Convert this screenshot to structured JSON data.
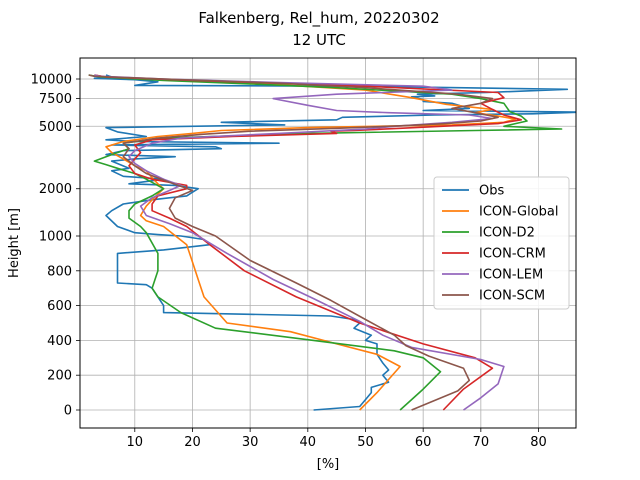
{
  "chart_data": {
    "type": "line",
    "title": "Falkenberg, Rel_hum, 20220302",
    "subtitle": "12 UTC",
    "xlabel": "[%]",
    "ylabel": "Height [m]",
    "xlim": [
      0.5,
      86.5
    ],
    "x_ticks": [
      10,
      20,
      30,
      40,
      50,
      60,
      70,
      80
    ],
    "y_ticks": [
      {
        "value": 0,
        "label": "0"
      },
      {
        "value": 200,
        "label": "200"
      },
      {
        "value": 400,
        "label": "400"
      },
      {
        "value": 600,
        "label": "600"
      },
      {
        "value": 800,
        "label": "800"
      },
      {
        "value": 1000,
        "label": "1000"
      },
      {
        "value": 2000,
        "label": "2000"
      },
      {
        "value": 5000,
        "label": "5000"
      },
      {
        "value": 7500,
        "label": "7500"
      },
      {
        "value": 10000,
        "label": "10000"
      }
    ],
    "y_scale": "piecewise: linear 0–1000 m, logarithmic above 1000 m",
    "grid": true,
    "legend_position": "center-right",
    "series": [
      {
        "name": "Obs",
        "color": "#1f77b4",
        "points": [
          [
            41,
            0
          ],
          [
            49,
            20
          ],
          [
            50,
            60
          ],
          [
            51,
            100
          ],
          [
            51,
            130
          ],
          [
            54,
            160
          ],
          [
            53,
            200
          ],
          [
            54,
            230
          ],
          [
            53,
            270
          ],
          [
            52,
            320
          ],
          [
            52,
            380
          ],
          [
            50,
            400
          ],
          [
            51,
            430
          ],
          [
            48,
            470
          ],
          [
            49,
            500
          ],
          [
            48,
            520
          ],
          [
            44,
            540
          ],
          [
            30,
            550
          ],
          [
            15,
            560
          ],
          [
            15,
            600
          ],
          [
            14,
            650
          ],
          [
            13,
            700
          ],
          [
            12,
            720
          ],
          [
            7,
            730
          ],
          [
            7,
            760
          ],
          [
            7,
            800
          ],
          [
            7,
            850
          ],
          [
            7,
            900
          ],
          [
            15,
            920
          ],
          [
            23,
            950
          ],
          [
            22,
            980
          ],
          [
            18,
            1000
          ],
          [
            14,
            1020
          ],
          [
            10,
            1050
          ],
          [
            7,
            1150
          ],
          [
            5,
            1350
          ],
          [
            6,
            1450
          ],
          [
            8,
            1600
          ],
          [
            13,
            1700
          ],
          [
            16,
            1750
          ],
          [
            19,
            1800
          ],
          [
            20,
            1900
          ],
          [
            21,
            2000
          ],
          [
            17,
            2100
          ],
          [
            9,
            2150
          ],
          [
            15,
            2300
          ],
          [
            8,
            2400
          ],
          [
            6,
            2600
          ],
          [
            9,
            2700
          ],
          [
            6,
            3000
          ],
          [
            10,
            3100
          ],
          [
            17,
            3200
          ],
          [
            5,
            3300
          ],
          [
            8,
            3500
          ],
          [
            25,
            3600
          ],
          [
            24,
            3700
          ],
          [
            6,
            3800
          ],
          [
            35,
            3900
          ],
          [
            10,
            4000
          ],
          [
            5,
            4100
          ],
          [
            12,
            4300
          ],
          [
            7,
            4600
          ],
          [
            5,
            4900
          ],
          [
            36,
            5100
          ],
          [
            25,
            5300
          ],
          [
            45,
            5500
          ],
          [
            46,
            5700
          ],
          [
            62,
            5900
          ],
          [
            79,
            6000
          ],
          [
            88,
            6150
          ],
          [
            60,
            6300
          ],
          [
            68,
            6500
          ],
          [
            65,
            7000
          ],
          [
            60,
            7200
          ],
          [
            60,
            7400
          ],
          [
            58,
            7700
          ],
          [
            62,
            7800
          ],
          [
            59,
            8000
          ],
          [
            71,
            8200
          ],
          [
            85,
            8600
          ],
          [
            48,
            9000
          ],
          [
            10,
            9100
          ],
          [
            14,
            9600
          ],
          [
            10,
            9900
          ],
          [
            3,
            10100
          ],
          [
            6,
            10300
          ],
          [
            5,
            10600
          ]
        ]
      },
      {
        "name": "ICON-Global",
        "color": "#ff7f0e",
        "points": [
          [
            49,
            0
          ],
          [
            52,
            100
          ],
          [
            56,
            250
          ],
          [
            52,
            320
          ],
          [
            45,
            380
          ],
          [
            37,
            450
          ],
          [
            26,
            500
          ],
          [
            22,
            650
          ],
          [
            21,
            750
          ],
          [
            20,
            850
          ],
          [
            19,
            950
          ],
          [
            15,
            1150
          ],
          [
            12,
            1250
          ],
          [
            11,
            1350
          ],
          [
            12,
            1550
          ],
          [
            13,
            1700
          ],
          [
            14,
            1850
          ],
          [
            15,
            2000
          ],
          [
            14,
            2150
          ],
          [
            13,
            2350
          ],
          [
            12,
            2600
          ],
          [
            10,
            2800
          ],
          [
            8,
            3100
          ],
          [
            6,
            3400
          ],
          [
            5,
            3700
          ],
          [
            8,
            4000
          ],
          [
            14,
            4300
          ],
          [
            20,
            4500
          ],
          [
            25,
            4700
          ],
          [
            40,
            4900
          ],
          [
            65,
            5100
          ],
          [
            74,
            5300
          ],
          [
            76,
            5550
          ],
          [
            73,
            5800
          ],
          [
            69,
            6100
          ],
          [
            72,
            6400
          ],
          [
            64,
            6900
          ],
          [
            58,
            7600
          ],
          [
            50,
            8500
          ],
          [
            35,
            9200
          ],
          [
            20,
            9700
          ],
          [
            5,
            10300
          ],
          [
            3,
            10600
          ]
        ]
      },
      {
        "name": "ICON-D2",
        "color": "#2ca02c",
        "points": [
          [
            56,
            0
          ],
          [
            58,
            60
          ],
          [
            60,
            120
          ],
          [
            63,
            220
          ],
          [
            60,
            300
          ],
          [
            55,
            340
          ],
          [
            41,
            400
          ],
          [
            24,
            470
          ],
          [
            18,
            560
          ],
          [
            14,
            650
          ],
          [
            13,
            700
          ],
          [
            14,
            800
          ],
          [
            14,
            900
          ],
          [
            12,
            1050
          ],
          [
            11,
            1150
          ],
          [
            9,
            1300
          ],
          [
            9,
            1450
          ],
          [
            10,
            1600
          ],
          [
            13,
            1800
          ],
          [
            15,
            2000
          ],
          [
            12,
            2300
          ],
          [
            10,
            2500
          ],
          [
            7,
            2700
          ],
          [
            5,
            2850
          ],
          [
            3,
            3000
          ],
          [
            6,
            3300
          ],
          [
            9,
            3600
          ],
          [
            8,
            3900
          ],
          [
            15,
            4200
          ],
          [
            40,
            4500
          ],
          [
            69,
            4700
          ],
          [
            84,
            4800
          ],
          [
            74,
            5000
          ],
          [
            78,
            5400
          ],
          [
            77,
            5800
          ],
          [
            75,
            6200
          ],
          [
            74,
            7000
          ],
          [
            70,
            7500
          ],
          [
            65,
            8000
          ],
          [
            45,
            8800
          ],
          [
            30,
            9300
          ],
          [
            15,
            9800
          ],
          [
            4,
            10300
          ],
          [
            2,
            10600
          ]
        ]
      },
      {
        "name": "ICON-CRM",
        "color": "#d62728",
        "points": [
          [
            63.5,
            0
          ],
          [
            67,
            120
          ],
          [
            72,
            240
          ],
          [
            69,
            300
          ],
          [
            60,
            380
          ],
          [
            49,
            500
          ],
          [
            38,
            650
          ],
          [
            29,
            800
          ],
          [
            23,
            950
          ],
          [
            19,
            1150
          ],
          [
            16,
            1300
          ],
          [
            13,
            1450
          ],
          [
            13,
            1600
          ],
          [
            14,
            1800
          ],
          [
            19,
            2000
          ],
          [
            19,
            2100
          ],
          [
            13,
            2300
          ],
          [
            10,
            2500
          ],
          [
            9,
            2800
          ],
          [
            10,
            3100
          ],
          [
            11,
            3400
          ],
          [
            10,
            3800
          ],
          [
            13,
            4100
          ],
          [
            27,
            4300
          ],
          [
            45,
            4500
          ],
          [
            44,
            4650
          ],
          [
            48,
            4700
          ],
          [
            56,
            4850
          ],
          [
            73,
            5200
          ],
          [
            77,
            5500
          ],
          [
            74,
            5900
          ],
          [
            72,
            6400
          ],
          [
            70,
            7000
          ],
          [
            74,
            7600
          ],
          [
            73,
            8200
          ],
          [
            50,
            9000
          ],
          [
            20,
            9800
          ],
          [
            5,
            10300
          ],
          [
            3,
            10600
          ]
        ]
      },
      {
        "name": "ICON-LEM",
        "color": "#9467bd",
        "points": [
          [
            67,
            0
          ],
          [
            70,
            70
          ],
          [
            73,
            150
          ],
          [
            74,
            250
          ],
          [
            70,
            290
          ],
          [
            58,
            360
          ],
          [
            53,
            430
          ],
          [
            49,
            510
          ],
          [
            41,
            640
          ],
          [
            34,
            750
          ],
          [
            26,
            900
          ],
          [
            20,
            1050
          ],
          [
            16,
            1200
          ],
          [
            12,
            1350
          ],
          [
            11,
            1550
          ],
          [
            13,
            1750
          ],
          [
            16,
            1950
          ],
          [
            18,
            2100
          ],
          [
            15,
            2300
          ],
          [
            12,
            2600
          ],
          [
            10,
            2900
          ],
          [
            9,
            3200
          ],
          [
            10,
            3500
          ],
          [
            13,
            3900
          ],
          [
            18,
            4200
          ],
          [
            35,
            4500
          ],
          [
            50,
            4800
          ],
          [
            55,
            5000
          ],
          [
            65,
            5300
          ],
          [
            72,
            5600
          ],
          [
            68,
            5900
          ],
          [
            54,
            6100
          ],
          [
            45,
            6300
          ],
          [
            40,
            6800
          ],
          [
            34,
            7500
          ],
          [
            45,
            8000
          ],
          [
            65,
            8500
          ],
          [
            60,
            9000
          ],
          [
            35,
            9500
          ],
          [
            15,
            10000
          ],
          [
            4,
            10400
          ],
          [
            3,
            10600
          ]
        ]
      },
      {
        "name": "ICON-SCM",
        "color": "#8c564b",
        "points": [
          [
            58,
            0
          ],
          [
            66,
            110
          ],
          [
            68,
            170
          ],
          [
            67,
            240
          ],
          [
            61,
            310
          ],
          [
            57,
            370
          ],
          [
            55,
            430
          ],
          [
            50,
            520
          ],
          [
            44,
            630
          ],
          [
            38,
            730
          ],
          [
            30,
            860
          ],
          [
            24,
            1000
          ],
          [
            20,
            1150
          ],
          [
            17,
            1300
          ],
          [
            16,
            1500
          ],
          [
            17,
            1750
          ],
          [
            20,
            1950
          ],
          [
            16,
            2200
          ],
          [
            12,
            2500
          ],
          [
            10,
            2800
          ],
          [
            8,
            3200
          ],
          [
            9,
            3600
          ],
          [
            8,
            3900
          ],
          [
            14,
            4200
          ],
          [
            22,
            4450
          ],
          [
            30,
            4650
          ],
          [
            45,
            4850
          ],
          [
            57,
            5050
          ],
          [
            64,
            5200
          ],
          [
            70,
            5400
          ],
          [
            73,
            5700
          ],
          [
            69,
            6100
          ],
          [
            65,
            6500
          ],
          [
            70,
            7000
          ],
          [
            72,
            7500
          ],
          [
            66,
            8000
          ],
          [
            50,
            8800
          ],
          [
            35,
            9400
          ],
          [
            18,
            9900
          ],
          [
            3,
            10400
          ],
          [
            2,
            10600
          ]
        ]
      }
    ]
  }
}
